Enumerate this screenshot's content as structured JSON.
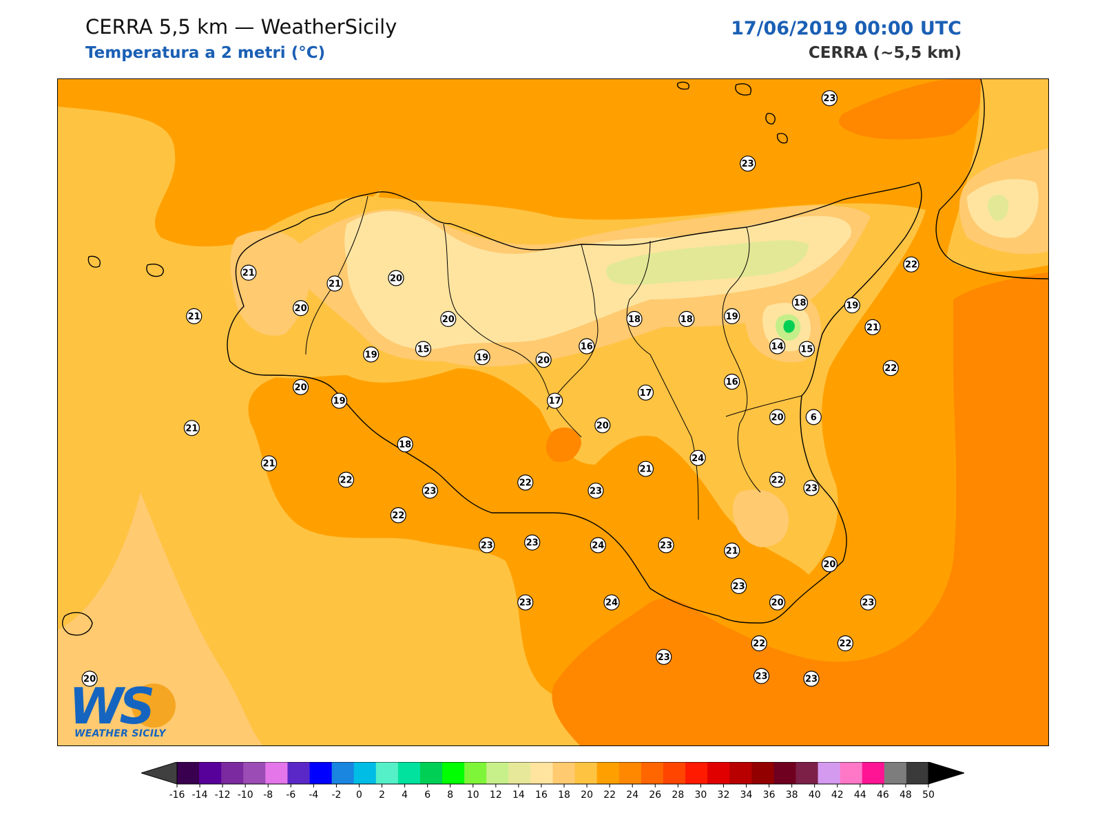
{
  "header": {
    "title": "CERRA 5,5 km — WeatherSicily",
    "subtitle": "Temperatura a 2 metri (°C)",
    "datetime": "17/06/2019 00:00 UTC",
    "model": "CERRA (~5,5 km)"
  },
  "logo": {
    "mark": "WS",
    "text": "WEATHER SICILY"
  },
  "colors": {
    "t16": "#FFE4A0",
    "t18": "#FFCA70",
    "t20": "#FFC342",
    "t22": "#FFA000",
    "t24": "#FF8800",
    "t12": "#C4EE8A",
    "t14": "#E2E896",
    "coast": "#000000"
  },
  "stations": [
    {
      "label": "23",
      "lon": 15.28,
      "lat": 38.8
    },
    {
      "label": "23",
      "lon": 14.92,
      "lat": 38.56
    },
    {
      "label": "21",
      "lon": 12.72,
      "lat": 38.16
    },
    {
      "label": "21",
      "lon": 13.1,
      "lat": 38.12
    },
    {
      "label": "20",
      "lon": 13.37,
      "lat": 38.14
    },
    {
      "label": "20",
      "lon": 13.6,
      "lat": 37.99
    },
    {
      "label": "21",
      "lon": 12.48,
      "lat": 38.0
    },
    {
      "label": "20",
      "lon": 12.95,
      "lat": 38.03
    },
    {
      "label": "19",
      "lon": 13.26,
      "lat": 37.86
    },
    {
      "label": "15",
      "lon": 13.49,
      "lat": 37.88
    },
    {
      "label": "19",
      "lon": 13.75,
      "lat": 37.85
    },
    {
      "label": "20",
      "lon": 14.02,
      "lat": 37.84
    },
    {
      "label": "16",
      "lon": 14.21,
      "lat": 37.89
    },
    {
      "label": "18",
      "lon": 14.42,
      "lat": 37.99
    },
    {
      "label": "18",
      "lon": 14.65,
      "lat": 37.99
    },
    {
      "label": "19",
      "lon": 14.85,
      "lat": 38.0
    },
    {
      "label": "18",
      "lon": 15.15,
      "lat": 38.05
    },
    {
      "label": "19",
      "lon": 15.38,
      "lat": 38.04
    },
    {
      "label": "22",
      "lon": 15.64,
      "lat": 38.19
    },
    {
      "label": "21",
      "lon": 15.47,
      "lat": 37.96
    },
    {
      "label": "14",
      "lon": 15.05,
      "lat": 37.89
    },
    {
      "label": "15",
      "lon": 15.18,
      "lat": 37.88
    },
    {
      "label": "16",
      "lon": 14.85,
      "lat": 37.76
    },
    {
      "label": "22",
      "lon": 15.55,
      "lat": 37.81
    },
    {
      "label": "20",
      "lon": 12.95,
      "lat": 37.74
    },
    {
      "label": "19",
      "lon": 13.12,
      "lat": 37.69
    },
    {
      "label": "17",
      "lon": 14.07,
      "lat": 37.69
    },
    {
      "label": "17",
      "lon": 14.47,
      "lat": 37.72
    },
    {
      "label": "20",
      "lon": 14.28,
      "lat": 37.6
    },
    {
      "label": "20",
      "lon": 15.05,
      "lat": 37.63
    },
    {
      "label": "6",
      "lon": 15.21,
      "lat": 37.63
    },
    {
      "label": "21",
      "lon": 12.47,
      "lat": 37.59
    },
    {
      "label": "18",
      "lon": 13.41,
      "lat": 37.53
    },
    {
      "label": "21",
      "lon": 12.81,
      "lat": 37.46
    },
    {
      "label": "22",
      "lon": 13.15,
      "lat": 37.4
    },
    {
      "label": "23",
      "lon": 13.52,
      "lat": 37.36
    },
    {
      "label": "22",
      "lon": 13.94,
      "lat": 37.39
    },
    {
      "label": "23",
      "lon": 14.25,
      "lat": 37.36
    },
    {
      "label": "21",
      "lon": 14.47,
      "lat": 37.44
    },
    {
      "label": "24",
      "lon": 14.7,
      "lat": 37.48
    },
    {
      "label": "22",
      "lon": 15.05,
      "lat": 37.4
    },
    {
      "label": "23",
      "lon": 15.2,
      "lat": 37.37
    },
    {
      "label": "22",
      "lon": 13.38,
      "lat": 37.27
    },
    {
      "label": "23",
      "lon": 13.77,
      "lat": 37.16
    },
    {
      "label": "23",
      "lon": 13.97,
      "lat": 37.17
    },
    {
      "label": "24",
      "lon": 14.26,
      "lat": 37.16
    },
    {
      "label": "23",
      "lon": 14.56,
      "lat": 37.16
    },
    {
      "label": "21",
      "lon": 14.85,
      "lat": 37.14
    },
    {
      "label": "20",
      "lon": 15.28,
      "lat": 37.09
    },
    {
      "label": "23",
      "lon": 14.88,
      "lat": 37.01
    },
    {
      "label": "23",
      "lon": 13.94,
      "lat": 36.95
    },
    {
      "label": "24",
      "lon": 14.32,
      "lat": 36.95
    },
    {
      "label": "20",
      "lon": 15.05,
      "lat": 36.95
    },
    {
      "label": "23",
      "lon": 15.45,
      "lat": 36.95
    },
    {
      "label": "22",
      "lon": 14.97,
      "lat": 36.8
    },
    {
      "label": "22",
      "lon": 15.35,
      "lat": 36.8
    },
    {
      "label": "23",
      "lon": 14.55,
      "lat": 36.75
    },
    {
      "label": "23",
      "lon": 14.98,
      "lat": 36.68
    },
    {
      "label": "23",
      "lon": 15.2,
      "lat": 36.67
    },
    {
      "label": "20",
      "lon": 12.02,
      "lat": 36.67
    }
  ],
  "colorbar": {
    "ticks": [
      "-16",
      "-14",
      "-12",
      "-10",
      "-8",
      "-6",
      "-4",
      "-2",
      "0",
      "2",
      "4",
      "6",
      "8",
      "10",
      "12",
      "14",
      "16",
      "18",
      "20",
      "22",
      "24",
      "26",
      "28",
      "30",
      "32",
      "34",
      "36",
      "38",
      "40",
      "42",
      "44",
      "46",
      "48",
      "50"
    ],
    "colors": [
      "#3a0050",
      "#58009a",
      "#7b2a9f",
      "#9b4db5",
      "#e476ea",
      "#5b28c8",
      "#0000ff",
      "#1a86e0",
      "#00bde6",
      "#56f0c8",
      "#00e29e",
      "#00cf55",
      "#00ff00",
      "#7ff53a",
      "#c8f08a",
      "#e7e89a",
      "#ffe4a0",
      "#ffca70",
      "#ffc342",
      "#ffa000",
      "#ff8800",
      "#ff6600",
      "#ff4500",
      "#ff1a00",
      "#e00000",
      "#b80000",
      "#930000",
      "#6f0020",
      "#7c2048",
      "#d49af0",
      "#ff78c8",
      "#ff1493",
      "#7d7d7d",
      "#3a3a3a"
    ],
    "extend_min_color": "#404040",
    "extend_max_color": "#000000"
  }
}
